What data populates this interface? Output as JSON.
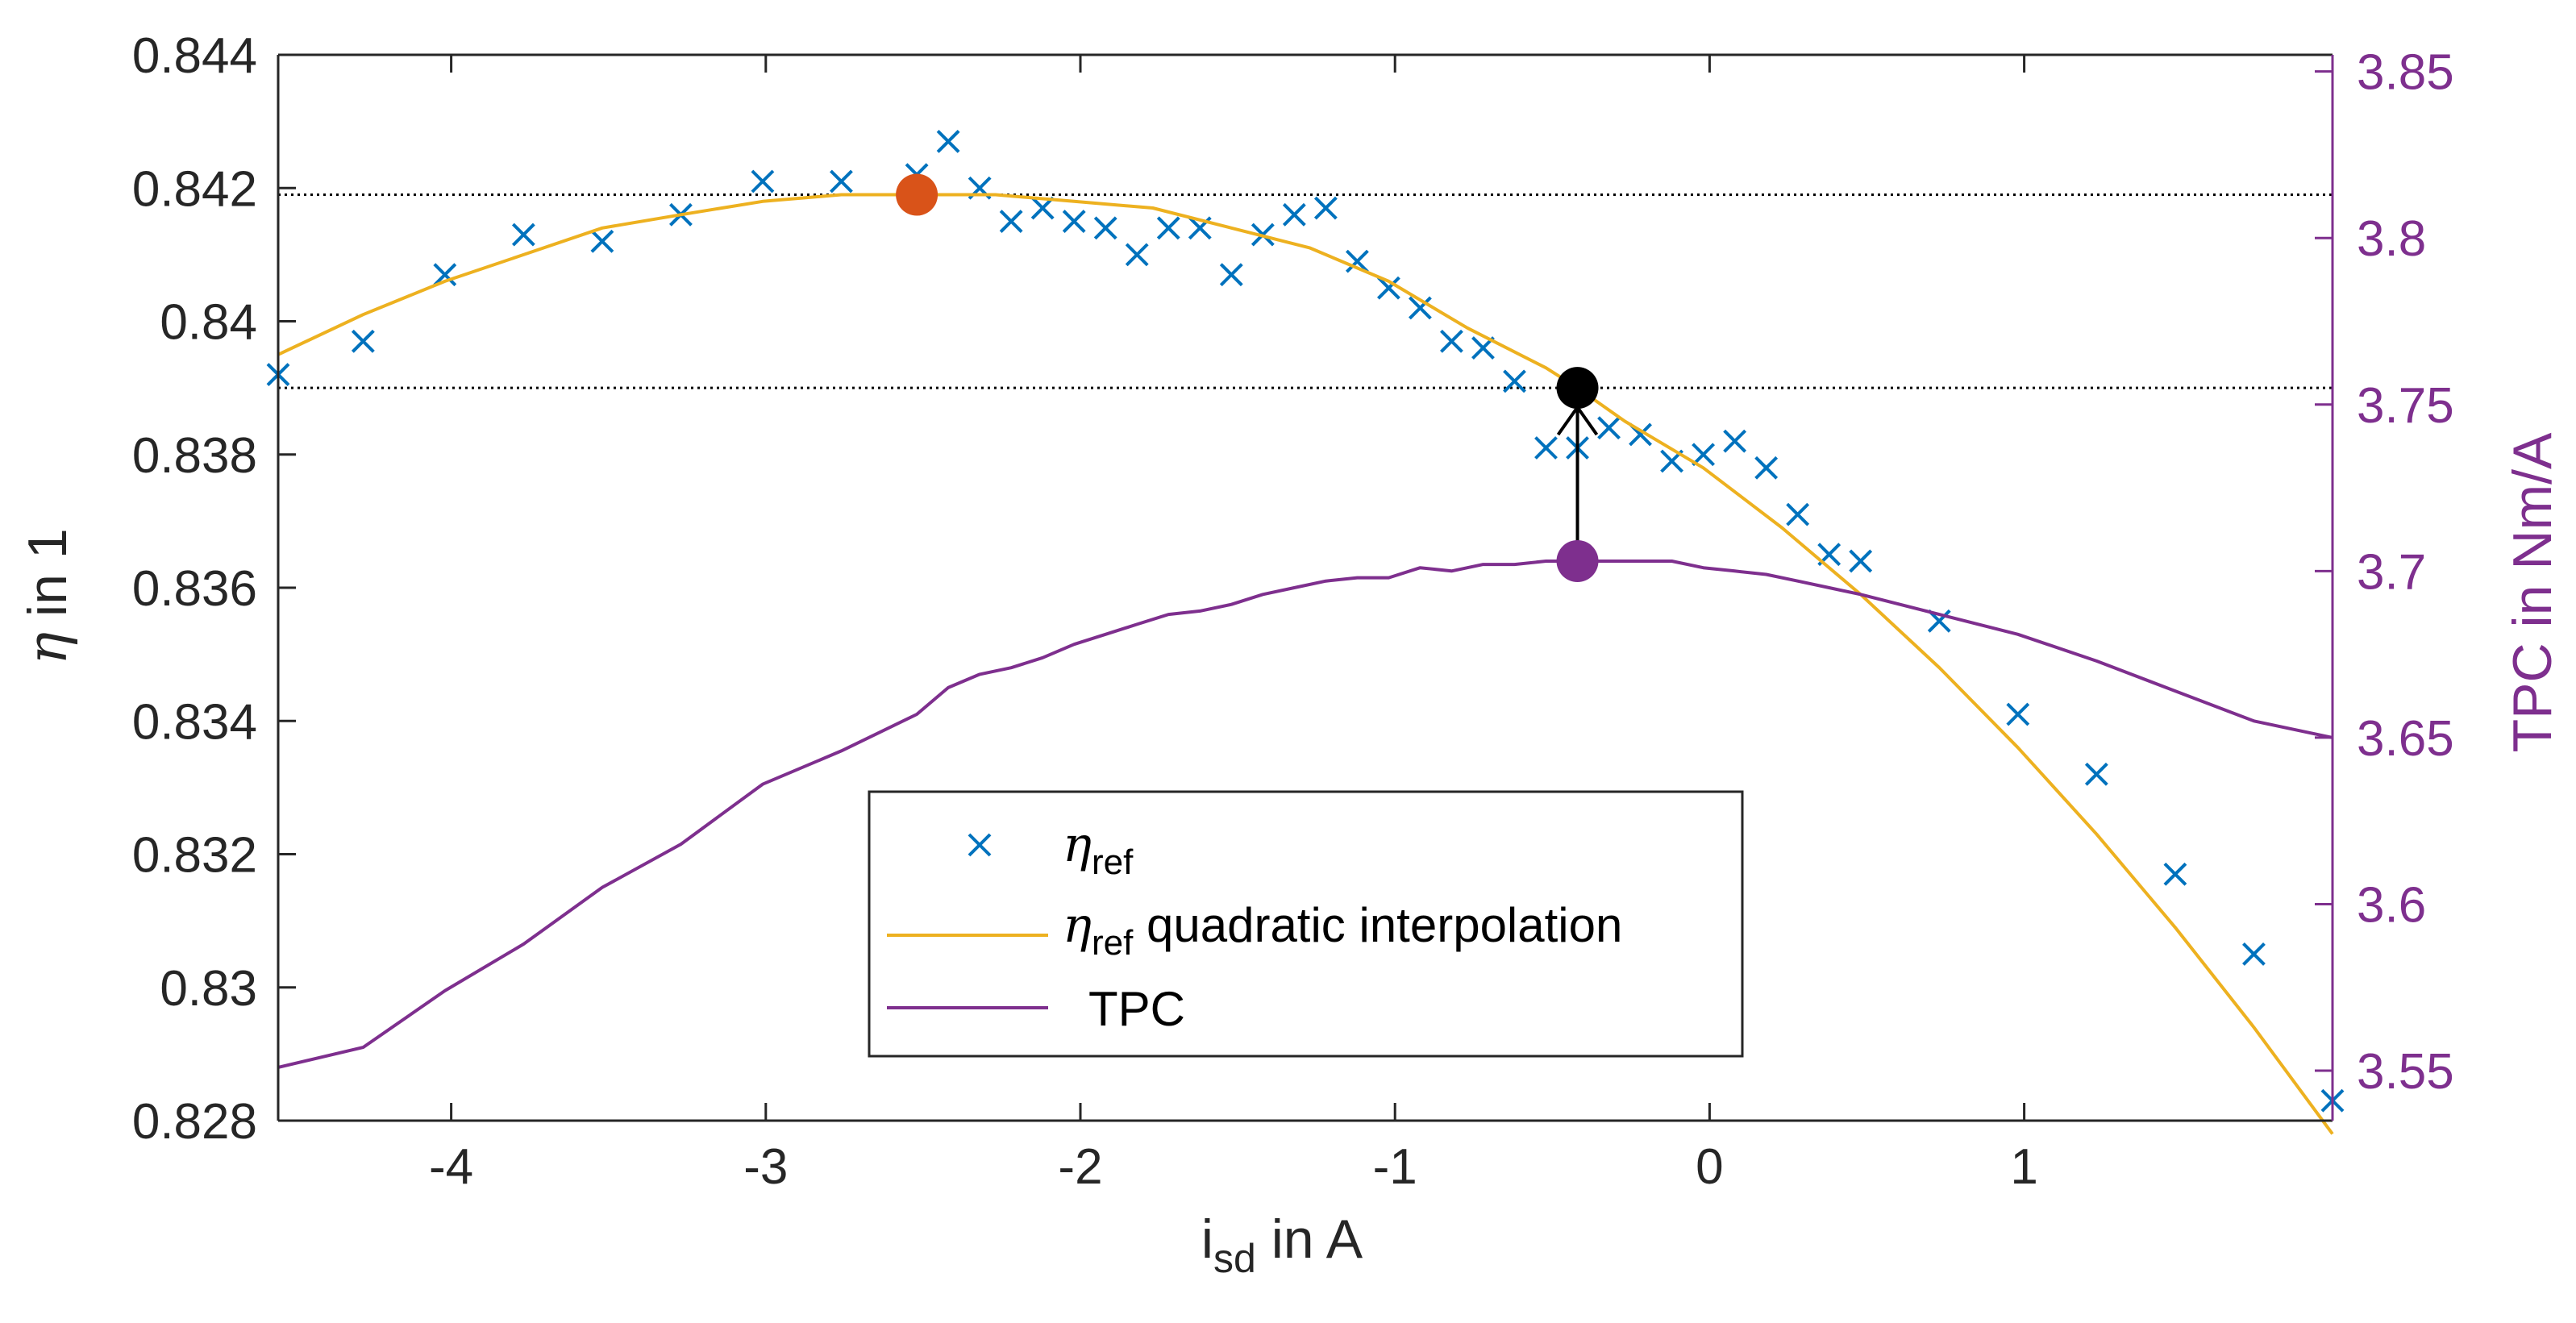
{
  "colors": {
    "eta_ref": "#0072BD",
    "interp": "#EDB120",
    "tpc": "#7E2F8E",
    "max_marker": "#D95319",
    "eta_at_tpc_marker": "#000000",
    "axis": "#262626"
  },
  "chart_data": {
    "type": "line",
    "xlabel": {
      "main": "i",
      "sub": "sd",
      "rest": " in A"
    },
    "ylabel_left": {
      "greek": "η",
      "rest": " in 1"
    },
    "ylabel_right": "TPC in Nm/A",
    "xlim": [
      -4.55,
      1.98
    ],
    "ylim_left": [
      0.828,
      0.844
    ],
    "ylim_right": [
      3.535,
      3.855
    ],
    "x_ticks": [
      -4,
      -3,
      -2,
      -1,
      0,
      1
    ],
    "x_tick_labels": [
      "-4",
      "-3",
      "-2",
      "-1",
      "0",
      "1"
    ],
    "y_left_ticks": [
      0.828,
      0.83,
      0.832,
      0.834,
      0.836,
      0.838,
      0.84,
      0.842,
      0.844
    ],
    "y_left_tick_labels": [
      "0.828",
      "0.83",
      "0.832",
      "0.834",
      "0.836",
      "0.838",
      "0.84",
      "0.842",
      "0.844"
    ],
    "y_right_ticks": [
      3.55,
      3.6,
      3.65,
      3.7,
      3.75,
      3.8,
      3.85
    ],
    "y_right_tick_labels": [
      "3.55",
      "3.6",
      "3.65",
      "3.7",
      "3.75",
      "3.8",
      "3.85"
    ],
    "series": [
      {
        "name": "η_ref",
        "axis": "left",
        "style": "markers-x",
        "x": [
          -4.55,
          -4.28,
          -4.02,
          -3.77,
          -3.52,
          -3.27,
          -3.01,
          -2.76,
          -2.52,
          -2.42,
          -2.32,
          -2.22,
          -2.12,
          -2.02,
          -1.92,
          -1.82,
          -1.72,
          -1.62,
          -1.52,
          -1.42,
          -1.32,
          -1.22,
          -1.12,
          -1.02,
          -0.92,
          -0.82,
          -0.72,
          -0.62,
          -0.52,
          -0.42,
          -0.32,
          -0.22,
          -0.12,
          -0.02,
          0.08,
          0.18,
          0.28,
          0.38,
          0.48,
          0.73,
          0.98,
          1.23,
          1.48,
          1.73,
          1.98
        ],
        "values": [
          0.8392,
          0.8397,
          0.8407,
          0.8413,
          0.8412,
          0.8416,
          0.8421,
          0.8421,
          0.8422,
          0.8427,
          0.842,
          0.8415,
          0.8417,
          0.8415,
          0.8414,
          0.841,
          0.8414,
          0.8414,
          0.8407,
          0.8413,
          0.8416,
          0.8417,
          0.8409,
          0.8405,
          0.8402,
          0.8397,
          0.8396,
          0.8391,
          0.8381,
          0.8381,
          0.8384,
          0.8383,
          0.8379,
          0.838,
          0.8382,
          0.8378,
          0.8371,
          0.8365,
          0.8364,
          0.8355,
          0.8341,
          0.8332,
          0.8317,
          0.8305,
          0.8283
        ]
      },
      {
        "name": "η_ref quadratic interpolation",
        "axis": "left",
        "style": "line",
        "x": [
          -4.55,
          -4.28,
          -4.02,
          -3.77,
          -3.52,
          -3.27,
          -3.01,
          -2.76,
          -2.52,
          -2.27,
          -2.02,
          -1.77,
          -1.52,
          -1.27,
          -1.02,
          -0.77,
          -0.52,
          -0.42,
          -0.27,
          -0.02,
          0.23,
          0.48,
          0.73,
          0.98,
          1.23,
          1.48,
          1.73,
          1.98
        ],
        "values": [
          0.8395,
          0.8401,
          0.8406,
          0.841,
          0.8414,
          0.8416,
          0.8418,
          0.8419,
          0.8419,
          0.8419,
          0.8418,
          0.8417,
          0.8414,
          0.8411,
          0.8406,
          0.8399,
          0.8393,
          0.839,
          0.8385,
          0.8378,
          0.8369,
          0.8359,
          0.8348,
          0.8336,
          0.8323,
          0.8309,
          0.8294,
          0.8278
        ]
      },
      {
        "name": "TPC",
        "axis": "right",
        "style": "line",
        "x": [
          -4.55,
          -4.28,
          -4.02,
          -3.77,
          -3.52,
          -3.27,
          -3.01,
          -2.76,
          -2.52,
          -2.42,
          -2.32,
          -2.22,
          -2.12,
          -2.02,
          -1.92,
          -1.82,
          -1.72,
          -1.62,
          -1.52,
          -1.42,
          -1.32,
          -1.22,
          -1.12,
          -1.02,
          -0.92,
          -0.82,
          -0.72,
          -0.62,
          -0.52,
          -0.42,
          -0.32,
          -0.22,
          -0.12,
          -0.02,
          0.08,
          0.18,
          0.28,
          0.38,
          0.48,
          0.73,
          0.98,
          1.23,
          1.48,
          1.73,
          1.98
        ],
        "values": [
          3.551,
          3.557,
          3.574,
          3.588,
          3.605,
          3.618,
          3.636,
          3.646,
          3.657,
          3.665,
          3.669,
          3.671,
          3.674,
          3.678,
          3.681,
          3.684,
          3.687,
          3.688,
          3.69,
          3.693,
          3.695,
          3.697,
          3.698,
          3.698,
          3.701,
          3.7,
          3.702,
          3.702,
          3.703,
          3.703,
          3.703,
          3.703,
          3.703,
          3.701,
          3.7,
          3.699,
          3.697,
          3.695,
          3.693,
          3.687,
          3.681,
          3.673,
          3.664,
          3.655,
          3.65
        ]
      }
    ],
    "markers": [
      {
        "name": "max-eta-marker",
        "x": -2.52,
        "y": 0.8419,
        "axis": "left"
      },
      {
        "name": "eta-at-max-tpc-marker",
        "x": -0.42,
        "y": 0.839,
        "axis": "left"
      },
      {
        "name": "max-tpc-marker",
        "x": -0.42,
        "y": 3.703,
        "axis": "right"
      }
    ],
    "reference_lines": [
      0.8419,
      0.839
    ],
    "legend": {
      "position": "bottom-center",
      "items": [
        {
          "greek": "η",
          "sub": "ref",
          "text": ""
        },
        {
          "greek": "η",
          "sub": "ref",
          "text": " quadratic interpolation"
        },
        {
          "greek": "",
          "sub": "",
          "text": "TPC"
        }
      ]
    }
  }
}
